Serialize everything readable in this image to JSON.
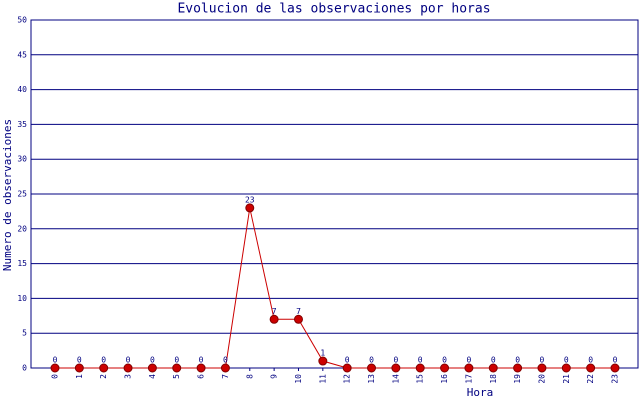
{
  "chart_data": {
    "type": "line",
    "title": "Evolucion de las observaciones por horas",
    "x_label": "Hora",
    "y_label": "Numero de observaciones",
    "categories": [
      "0",
      "1",
      "2",
      "3",
      "4",
      "5",
      "6",
      "7",
      "8",
      "9",
      "10",
      "11",
      "12",
      "13",
      "14",
      "15",
      "16",
      "17",
      "18",
      "19",
      "20",
      "21",
      "22",
      "23"
    ],
    "values": [
      0,
      0,
      0,
      0,
      0,
      0,
      0,
      0,
      23,
      7,
      7,
      1,
      0,
      0,
      0,
      0,
      0,
      0,
      0,
      0,
      0,
      0,
      0,
      0
    ],
    "color": "#cc0000",
    "ylim": [
      0,
      50
    ],
    "yticks": [
      0,
      5,
      10,
      15,
      20,
      25,
      30,
      35,
      40,
      45,
      50
    ],
    "grid": true
  }
}
